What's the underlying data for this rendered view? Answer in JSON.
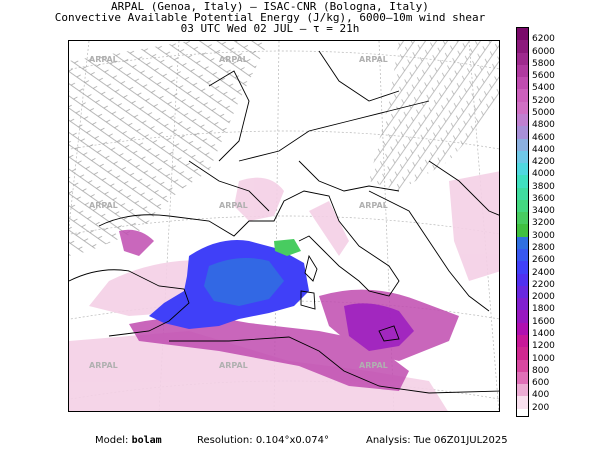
{
  "header": {
    "line1": "ARPAL (Genoa, Italy)  –  ISAC-CNR (Bologna, Italy)",
    "line2": "Convective Available Potential Energy (J/kg), 6000–10m wind shear",
    "line3": "03 UTC Wed 02 JUL  –  τ = 21h"
  },
  "colorbar": {
    "levels": [
      "6200",
      "6000",
      "5800",
      "5600",
      "5400",
      "5200",
      "5000",
      "4800",
      "4600",
      "4400",
      "4200",
      "4000",
      "3800",
      "3600",
      "3400",
      "3200",
      "3000",
      "2800",
      "2600",
      "2400",
      "2200",
      "2000",
      "1800",
      "1600",
      "1400",
      "1200",
      "1000",
      "800",
      "600",
      "400",
      "200"
    ],
    "colors": [
      "#7a0a6a",
      "#8c1a7c",
      "#9e2a8e",
      "#b03aa0",
      "#c04cb0",
      "#cc60bc",
      "#d070c4",
      "#c080d0",
      "#a890d8",
      "#8cb0e0",
      "#70c8e8",
      "#50d8e0",
      "#40e0c0",
      "#40dca0",
      "#44d880",
      "#48cc60",
      "#40c040",
      "#3070e0",
      "#3858f0",
      "#4040f8",
      "#5030f0",
      "#6828e0",
      "#8020d0",
      "#9818c0",
      "#b010b0",
      "#c81898",
      "#d02890",
      "#d848a0",
      "#e070b8",
      "#ecacd4",
      "#f8e0ee"
    ]
  },
  "watermarks": [
    "ARPAL",
    "ARPAL",
    "ARPAL",
    "ARPAL",
    "ARPAL",
    "ARPAL",
    "ARPAL",
    "ARPAL",
    "ARPAL"
  ],
  "footer": {
    "model_label": "Model:",
    "model_value": "bolam",
    "resolution_label": "Resolution:",
    "resolution_value": "0.104°x0.074°",
    "analysis_label": "Analysis:",
    "analysis_value": "Tue 06Z01JUL2025"
  },
  "icons": {
    "wind_barbs": "wind-barb-icon"
  }
}
